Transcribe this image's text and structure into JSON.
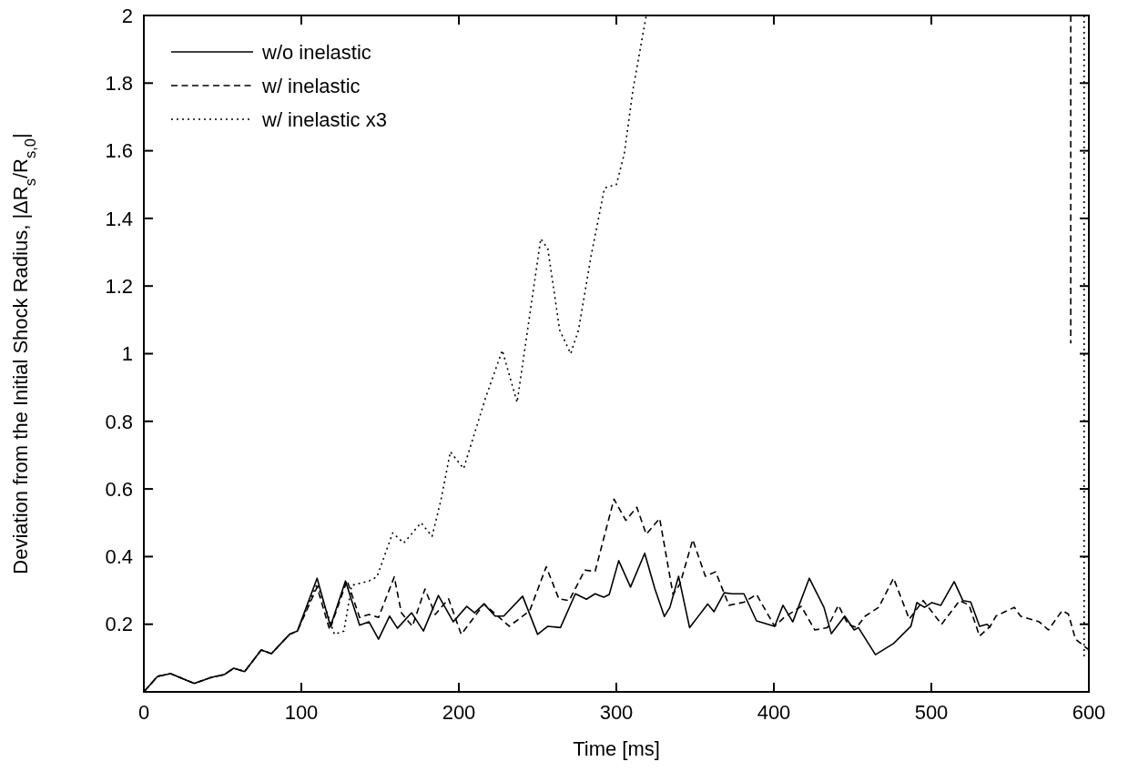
{
  "chart_data": {
    "type": "line",
    "xlabel": "Time [ms]",
    "ylabel": "Deviation from the Initial Shock Radius, |ΔR$_{s}$/R$_{s,0}$|",
    "xlim": [
      0,
      600
    ],
    "xticks": [
      0,
      100,
      200,
      300,
      400,
      500,
      600
    ],
    "ylim": [
      0,
      2
    ],
    "yticks": [
      0.2,
      0.4,
      0.6,
      0.8,
      1,
      1.2,
      1.4,
      1.6,
      1.8,
      2
    ],
    "grid": false,
    "legend": "top left",
    "series": [
      {
        "name": "w/o inelastic",
        "color": "#000000",
        "line_style": "solid",
        "x": [
          0,
          8.7,
          17,
          32,
          43,
          51,
          57,
          64,
          74.5,
          81,
          92.5,
          97.5,
          110,
          118.5,
          128,
          137,
          143,
          149,
          156,
          161,
          170,
          177.5,
          187,
          196.5,
          205,
          210,
          216,
          223,
          228.5,
          240.5,
          250,
          256.5,
          264.5,
          274,
          281,
          286.5,
          292,
          295.5,
          301.5,
          309,
          318,
          324.5,
          330.5,
          334,
          339.5,
          346.5,
          358,
          362,
          368.5,
          373.5,
          381,
          389,
          400.5,
          405.8,
          412,
          422.5,
          431.8,
          436.5,
          445,
          451,
          453.7,
          464.5,
          476,
          487,
          490.8,
          495.6,
          500.4,
          506,
          514.5,
          520,
          525,
          530.6,
          535.4,
          537.5
        ],
        "values": [
          0,
          0.046,
          0.054,
          0.025,
          0.043,
          0.051,
          0.07,
          0.06,
          0.124,
          0.113,
          0.17,
          0.18,
          0.336,
          0.194,
          0.328,
          0.197,
          0.207,
          0.156,
          0.224,
          0.188,
          0.234,
          0.18,
          0.285,
          0.207,
          0.253,
          0.234,
          0.26,
          0.224,
          0.224,
          0.283,
          0.17,
          0.194,
          0.19,
          0.29,
          0.274,
          0.29,
          0.28,
          0.288,
          0.388,
          0.31,
          0.41,
          0.304,
          0.223,
          0.25,
          0.342,
          0.19,
          0.26,
          0.237,
          0.293,
          0.29,
          0.29,
          0.21,
          0.194,
          0.256,
          0.207,
          0.336,
          0.25,
          0.172,
          0.224,
          0.183,
          0.19,
          0.11,
          0.143,
          0.194,
          0.264,
          0.25,
          0.264,
          0.256,
          0.326,
          0.27,
          0.266,
          0.194,
          0.2,
          0.19
        ]
      },
      {
        "name": "w/ inelastic",
        "color": "#000000",
        "line_style": "dashed",
        "x": [
          0,
          8.7,
          17,
          32,
          43,
          51,
          57,
          64,
          74.5,
          81,
          92.5,
          97.5,
          110,
          118,
          129,
          137,
          143,
          149,
          159,
          163.5,
          170.5,
          178.5,
          185,
          193.5,
          201.5,
          216,
          232,
          245,
          255.5,
          263.5,
          270,
          280,
          286.5,
          298.5,
          306,
          313,
          319,
          327.5,
          336,
          340.5,
          348.5,
          356.5,
          363,
          371.5,
          381,
          389,
          400.5,
          406.5,
          417.4,
          426,
          434,
          441,
          447,
          452.5,
          458,
          466.6,
          476,
          486,
          494.8,
          506.5,
          518,
          524,
          530.6,
          537.4,
          541,
          552.7,
          556.6,
          568.5,
          574.3,
          583,
          587,
          591.5,
          599.5
        ],
        "values": [
          0,
          0.046,
          0.054,
          0.025,
          0.043,
          0.051,
          0.07,
          0.06,
          0.124,
          0.113,
          0.17,
          0.18,
          0.31,
          0.183,
          0.33,
          0.22,
          0.229,
          0.22,
          0.34,
          0.234,
          0.194,
          0.304,
          0.229,
          0.275,
          0.17,
          0.26,
          0.194,
          0.24,
          0.37,
          0.275,
          0.27,
          0.36,
          0.356,
          0.57,
          0.507,
          0.546,
          0.466,
          0.513,
          0.288,
          0.32,
          0.45,
          0.342,
          0.355,
          0.256,
          0.265,
          0.288,
          0.194,
          0.22,
          0.253,
          0.183,
          0.19,
          0.256,
          0.2,
          0.19,
          0.224,
          0.25,
          0.336,
          0.215,
          0.27,
          0.2,
          0.27,
          0.256,
          0.165,
          0.194,
          0.224,
          0.25,
          0.224,
          0.207,
          0.183,
          0.24,
          0.23,
          0.156,
          0.126
        ]
      },
      {
        "name": "w/ inelastic x3",
        "color": "#000000",
        "line_style": "dotted",
        "x": [
          0,
          8.7,
          17,
          32,
          43,
          51,
          57,
          64,
          74.5,
          81,
          92.5,
          97.5,
          110,
          121,
          127,
          132,
          143,
          148,
          158,
          165,
          176,
          183,
          188.6,
          194.6,
          203,
          217,
          227.6,
          237,
          252,
          256.5,
          264,
          271,
          276,
          284,
          292.5,
          300,
          305,
          310.7,
          319
        ],
        "values": [
          0,
          0.046,
          0.054,
          0.025,
          0.043,
          0.051,
          0.07,
          0.06,
          0.124,
          0.113,
          0.17,
          0.18,
          0.32,
          0.17,
          0.18,
          0.315,
          0.328,
          0.34,
          0.47,
          0.44,
          0.5,
          0.46,
          0.566,
          0.71,
          0.66,
          0.87,
          1.01,
          0.856,
          1.34,
          1.31,
          1.07,
          1,
          1.07,
          1.29,
          1.49,
          1.5,
          1.59,
          1.785,
          2
        ]
      },
      {
        "color": "#000000",
        "line_style": "dotted",
        "x": [
          597,
          597
        ],
        "values": [
          2,
          0.1
        ]
      },
      {
        "color": "#000000",
        "line_style": "dashed",
        "x": [
          588.5,
          588.5
        ],
        "values": [
          2,
          1.03
        ]
      }
    ]
  }
}
